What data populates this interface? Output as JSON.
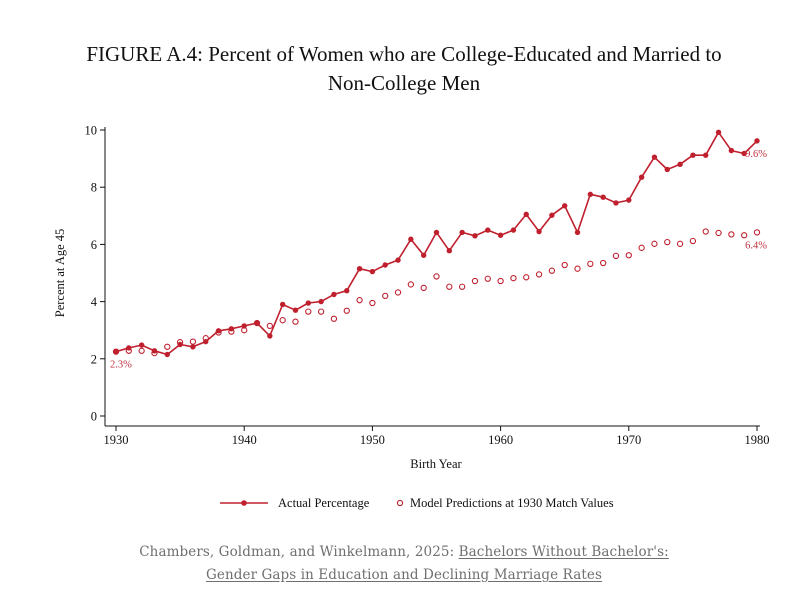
{
  "chart_data": {
    "type": "line",
    "title_lines": [
      "FIGURE A.4: Percent of Women who are College-Educated and Married to",
      "Non-College Men"
    ],
    "xlabel": "Birth Year",
    "ylabel": "Percent at Age 45",
    "xlim": [
      1930,
      1980
    ],
    "ylim": [
      0,
      10
    ],
    "xticks": [
      1930,
      1940,
      1950,
      1960,
      1970,
      1980
    ],
    "yticks": [
      0,
      2,
      4,
      6,
      8,
      10
    ],
    "grid": false,
    "legend_position": "bottom",
    "x": [
      1930,
      1931,
      1932,
      1933,
      1934,
      1935,
      1936,
      1937,
      1938,
      1939,
      1940,
      1941,
      1942,
      1943,
      1944,
      1945,
      1946,
      1947,
      1948,
      1949,
      1950,
      1951,
      1952,
      1953,
      1954,
      1955,
      1956,
      1957,
      1958,
      1959,
      1960,
      1961,
      1962,
      1963,
      1964,
      1965,
      1966,
      1967,
      1968,
      1969,
      1970,
      1971,
      1972,
      1973,
      1974,
      1975,
      1976,
      1977,
      1978,
      1979,
      1980
    ],
    "series": [
      {
        "name": "Actual Percentage",
        "style": "solid-line-filled-markers",
        "color": "#c0202e",
        "values": [
          2.25,
          2.38,
          2.48,
          2.28,
          2.15,
          2.5,
          2.42,
          2.6,
          2.98,
          3.05,
          3.15,
          3.25,
          2.8,
          3.9,
          3.7,
          3.95,
          4.0,
          4.25,
          4.38,
          5.15,
          5.05,
          5.28,
          5.45,
          6.18,
          5.62,
          6.42,
          5.78,
          6.42,
          6.3,
          6.5,
          6.32,
          6.5,
          7.05,
          6.45,
          7.02,
          7.35,
          6.42,
          7.75,
          7.65,
          7.45,
          7.55,
          8.35,
          9.05,
          8.62,
          8.8,
          9.12,
          9.12,
          9.92,
          9.28,
          9.18,
          9.62
        ]
      },
      {
        "name": "Model Predictions at 1930 Match Values",
        "style": "hollow-markers",
        "color": "#c0202e",
        "values": [
          2.25,
          2.28,
          2.28,
          2.2,
          2.42,
          2.58,
          2.6,
          2.72,
          2.92,
          2.95,
          3.0,
          3.25,
          3.15,
          3.35,
          3.3,
          3.65,
          3.65,
          3.4,
          3.68,
          4.05,
          3.95,
          4.2,
          4.32,
          4.6,
          4.48,
          4.88,
          4.52,
          4.52,
          4.72,
          4.8,
          4.72,
          4.82,
          4.85,
          4.95,
          5.08,
          5.28,
          5.15,
          5.32,
          5.35,
          5.6,
          5.62,
          5.88,
          6.02,
          6.08,
          6.02,
          6.12,
          6.45,
          6.4,
          6.35,
          6.32,
          6.42
        ]
      }
    ],
    "annotations": [
      {
        "text": "2.3%",
        "x": 1930,
        "y": 2.25
      },
      {
        "text": "9.6%",
        "x": 1980,
        "y": 9.62
      },
      {
        "text": "6.4%",
        "x": 1980,
        "y": 6.42
      }
    ]
  },
  "caption": {
    "prefix": "Chambers, Goldman, and Winkelmann, 2025: ",
    "link_line1": "Bachelors Without Bachelor's:",
    "link_line2": "Gender Gaps in Education and Declining Marriage Rates"
  }
}
